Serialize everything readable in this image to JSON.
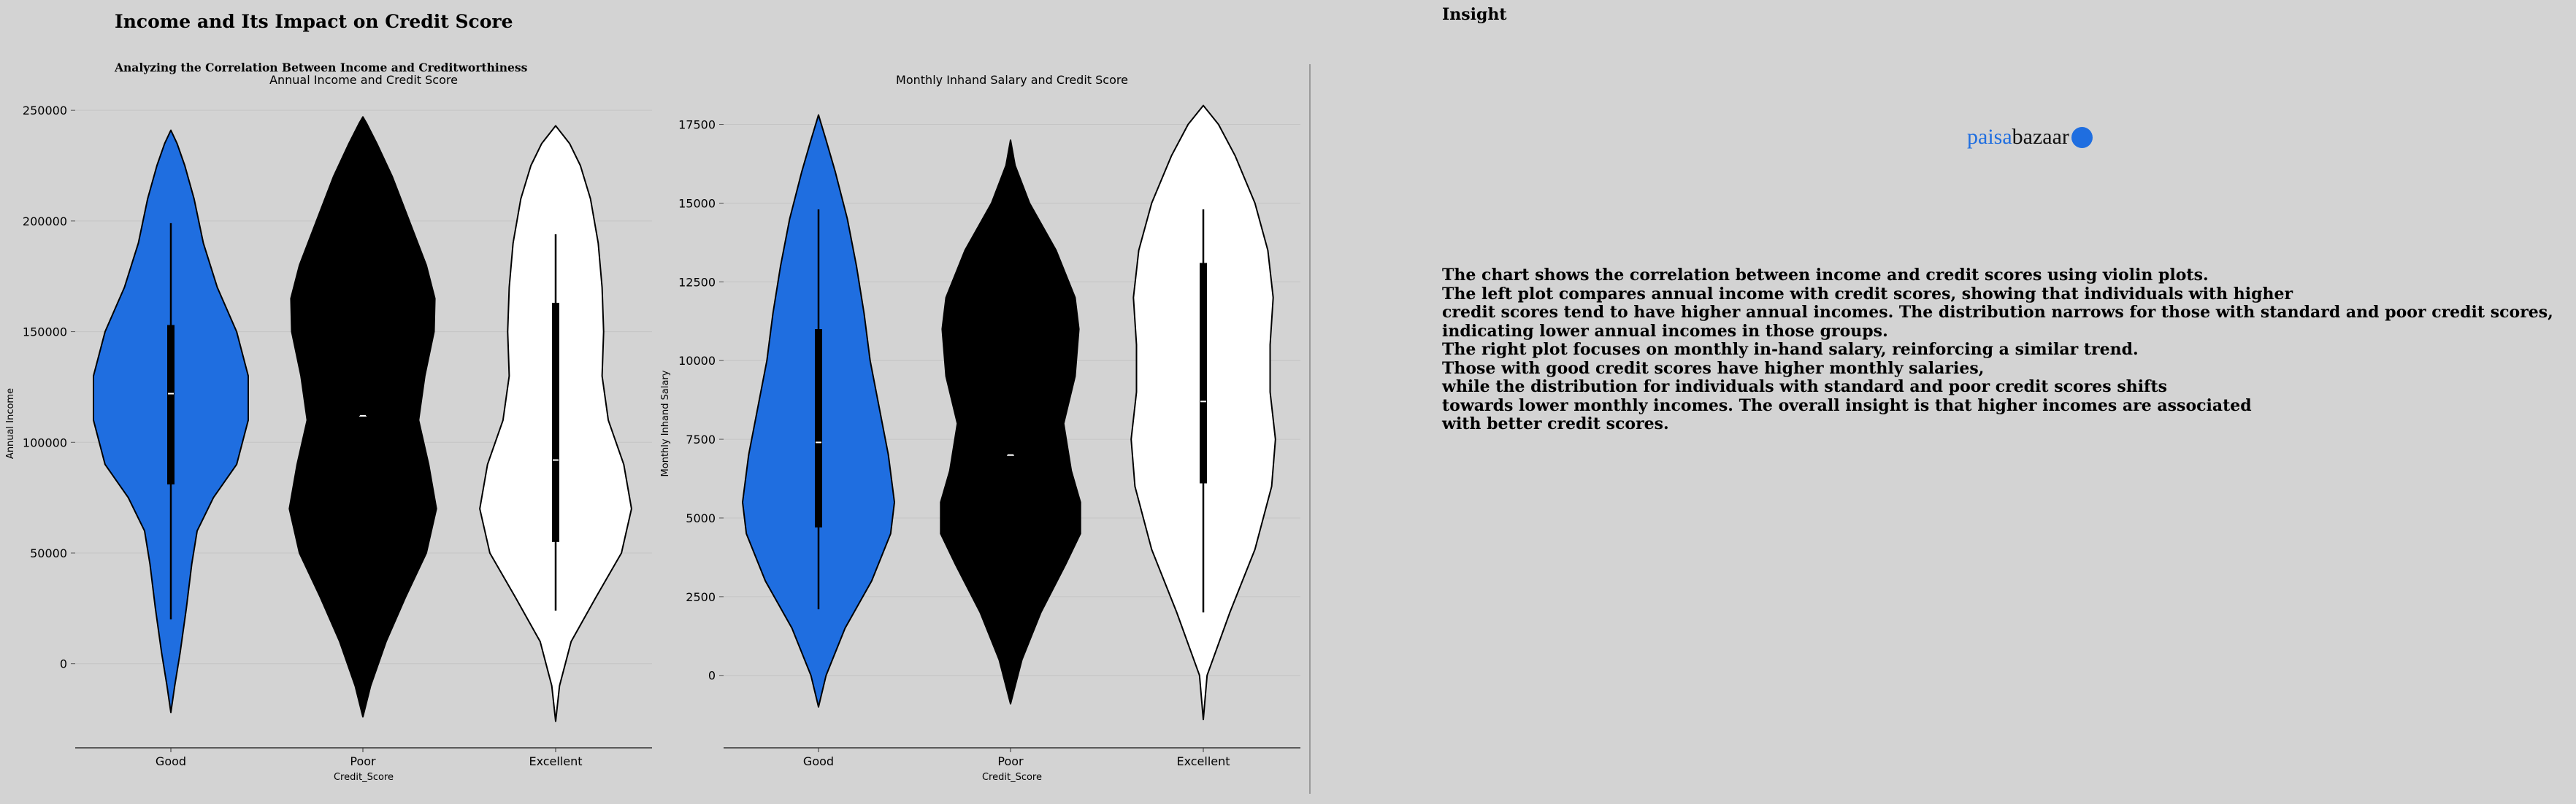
{
  "header": {
    "title": "Income and Its Impact on Credit Score",
    "subtitle": "Analyzing the Correlation Between Income and Creditworthiness",
    "insight_heading": "Insight"
  },
  "insight": {
    "lines": [
      "The chart shows the correlation between income and credit scores using violin plots.",
      "The left plot compares annual income with credit scores, showing that individuals with higher",
      "credit scores tend to have higher annual incomes. The distribution narrows for those with standard and poor credit scores,",
      "indicating lower annual incomes in those groups.",
      "The right plot focuses on monthly in-hand salary, reinforcing a similar trend.",
      "Those with good credit scores have higher monthly salaries,",
      "while the distribution for individuals with standard and poor credit scores shifts",
      "towards lower monthly incomes. The overall insight is that higher incomes are associated",
      "with better credit scores."
    ]
  },
  "logo": {
    "part1": "paisa",
    "part2": "bazaar",
    "icon": "paisabazaar-badge-icon",
    "color": "#1f6ee0"
  },
  "colors": {
    "background": "#d3d3d3",
    "good": "#1f6ee0",
    "poor": "#000000",
    "excellent": "#ffffff"
  },
  "chart_data": [
    {
      "type": "violin",
      "title": "Annual Income and Credit Score",
      "xlabel": "Credit_Score",
      "ylabel": "Annual Income",
      "categories": [
        "Good",
        "Poor",
        "Excellent"
      ],
      "colors": [
        "#1f6ee0",
        "#000000",
        "#ffffff"
      ],
      "ylim": [
        -38000,
        255000
      ],
      "yticks": [
        0,
        50000,
        100000,
        150000,
        200000,
        250000
      ],
      "ytick_labels": [
        "0",
        "50000",
        "100000",
        "150000",
        "200000",
        "250000"
      ],
      "grid": true,
      "violins": [
        {
          "category": "Good",
          "min": -22000,
          "max": 241000,
          "profile": [
            [
              -22000,
              0.0
            ],
            [
              -10000,
              0.05
            ],
            [
              5000,
              0.12
            ],
            [
              25000,
              0.2
            ],
            [
              45000,
              0.27
            ],
            [
              60000,
              0.34
            ],
            [
              75000,
              0.55
            ],
            [
              90000,
              0.85
            ],
            [
              110000,
              1.0
            ],
            [
              130000,
              1.0
            ],
            [
              150000,
              0.85
            ],
            [
              170000,
              0.6
            ],
            [
              190000,
              0.42
            ],
            [
              210000,
              0.3
            ],
            [
              225000,
              0.18
            ],
            [
              235000,
              0.08
            ],
            [
              241000,
              0.0
            ]
          ],
          "q1": 81000,
          "median": 122000,
          "q3": 153000,
          "whisker_low": 20000,
          "whisker_high": 199000
        },
        {
          "category": "Poor",
          "min": -24000,
          "max": 247000,
          "profile": [
            [
              -24000,
              0.0
            ],
            [
              -10000,
              0.1
            ],
            [
              10000,
              0.3
            ],
            [
              30000,
              0.55
            ],
            [
              50000,
              0.82
            ],
            [
              70000,
              0.95
            ],
            [
              90000,
              0.85
            ],
            [
              110000,
              0.72
            ],
            [
              130000,
              0.8
            ],
            [
              150000,
              0.92
            ],
            [
              165000,
              0.93
            ],
            [
              180000,
              0.82
            ],
            [
              200000,
              0.6
            ],
            [
              220000,
              0.38
            ],
            [
              235000,
              0.18
            ],
            [
              244000,
              0.05
            ],
            [
              247000,
              0.0
            ]
          ],
          "q1": 112000,
          "median": 112000,
          "q3": 112000,
          "whisker_low": 112000,
          "whisker_high": 112000
        },
        {
          "category": "Excellent",
          "min": -26000,
          "max": 243000,
          "profile": [
            [
              -26000,
              0.0
            ],
            [
              -10000,
              0.05
            ],
            [
              10000,
              0.2
            ],
            [
              30000,
              0.52
            ],
            [
              50000,
              0.85
            ],
            [
              70000,
              0.98
            ],
            [
              90000,
              0.88
            ],
            [
              110000,
              0.68
            ],
            [
              130000,
              0.6
            ],
            [
              150000,
              0.62
            ],
            [
              170000,
              0.6
            ],
            [
              190000,
              0.55
            ],
            [
              210000,
              0.45
            ],
            [
              225000,
              0.32
            ],
            [
              235000,
              0.18
            ],
            [
              243000,
              0.0
            ]
          ],
          "q1": 55000,
          "median": 92000,
          "q3": 163000,
          "whisker_low": 24000,
          "whisker_high": 194000
        }
      ]
    },
    {
      "type": "violin",
      "title": "Monthly Inhand Salary and Credit Score",
      "xlabel": "Credit_Score",
      "ylabel": "Monthly Inhand Salary",
      "categories": [
        "Good",
        "Poor",
        "Excellent"
      ],
      "colors": [
        "#1f6ee0",
        "#000000",
        "#ffffff"
      ],
      "ylim": [
        -2300,
        18300
      ],
      "yticks": [
        0,
        2500,
        5000,
        7500,
        10000,
        12500,
        15000,
        17500
      ],
      "ytick_labels": [
        "0",
        "2500",
        "5000",
        "7500",
        "10000",
        "12500",
        "15000",
        "17500"
      ],
      "grid": true,
      "violins": [
        {
          "category": "Good",
          "min": -1000,
          "max": 17800,
          "profile": [
            [
              -1000,
              0.0
            ],
            [
              0,
              0.1
            ],
            [
              1500,
              0.35
            ],
            [
              3000,
              0.7
            ],
            [
              4500,
              0.95
            ],
            [
              5500,
              1.0
            ],
            [
              7000,
              0.92
            ],
            [
              8500,
              0.8
            ],
            [
              10000,
              0.68
            ],
            [
              11500,
              0.6
            ],
            [
              13000,
              0.5
            ],
            [
              14500,
              0.38
            ],
            [
              16000,
              0.22
            ],
            [
              17000,
              0.1
            ],
            [
              17800,
              0.0
            ]
          ],
          "q1": 4700,
          "median": 7400,
          "q3": 11000,
          "whisker_low": 2100,
          "whisker_high": 14800
        },
        {
          "category": "Poor",
          "min": -900,
          "max": 17000,
          "profile": [
            [
              -900,
              0.0
            ],
            [
              500,
              0.15
            ],
            [
              2000,
              0.4
            ],
            [
              3500,
              0.72
            ],
            [
              4500,
              0.92
            ],
            [
              5500,
              0.92
            ],
            [
              6500,
              0.8
            ],
            [
              8000,
              0.7
            ],
            [
              9500,
              0.85
            ],
            [
              11000,
              0.9
            ],
            [
              12000,
              0.85
            ],
            [
              13500,
              0.6
            ],
            [
              15000,
              0.25
            ],
            [
              16200,
              0.06
            ],
            [
              17000,
              0.0
            ]
          ],
          "q1": 7000,
          "median": 7000,
          "q3": 7000,
          "whisker_low": 7000,
          "whisker_high": 7000
        },
        {
          "category": "Excellent",
          "min": -1400,
          "max": 18100,
          "profile": [
            [
              -1400,
              0.0
            ],
            [
              0,
              0.05
            ],
            [
              2000,
              0.35
            ],
            [
              4000,
              0.68
            ],
            [
              6000,
              0.9
            ],
            [
              7500,
              0.95
            ],
            [
              9000,
              0.88
            ],
            [
              10500,
              0.88
            ],
            [
              12000,
              0.92
            ],
            [
              13500,
              0.85
            ],
            [
              15000,
              0.68
            ],
            [
              16500,
              0.42
            ],
            [
              17500,
              0.2
            ],
            [
              18100,
              0.0
            ]
          ],
          "q1": 6100,
          "median": 8700,
          "q3": 13100,
          "whisker_low": 2000,
          "whisker_high": 14800
        }
      ]
    }
  ]
}
